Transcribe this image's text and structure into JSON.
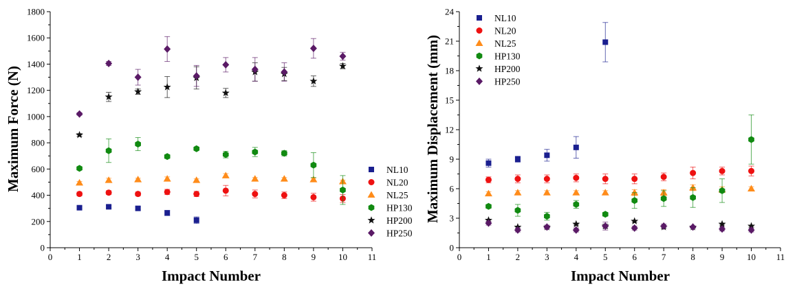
{
  "series_styles": {
    "NL10": {
      "color": "#1a1f8f",
      "marker": "square"
    },
    "NL20": {
      "color": "#ee1111",
      "marker": "circle"
    },
    "NL25": {
      "color": "#ff8c1a",
      "marker": "triangle"
    },
    "HP130": {
      "color": "#118a11",
      "marker": "hexagon"
    },
    "HP200": {
      "color": "#111111",
      "marker": "star"
    },
    "HP250": {
      "color": "#5a1a66",
      "marker": "diamond"
    }
  },
  "chart_data": [
    {
      "type": "scatter",
      "title": "",
      "xlabel": "Impact Number",
      "ylabel": "Maximum Force (N)",
      "xlim": [
        0,
        11
      ],
      "ylim": [
        0,
        1800
      ],
      "xticks": [
        0,
        1,
        2,
        3,
        4,
        5,
        6,
        7,
        8,
        9,
        10,
        11
      ],
      "yticks": [
        0,
        200,
        400,
        600,
        800,
        1000,
        1200,
        1400,
        1600,
        1800
      ],
      "grid": false,
      "legend_position": "bottom-right",
      "series": [
        {
          "name": "NL10",
          "x": [
            1,
            2,
            3,
            4,
            5
          ],
          "y": [
            305,
            312,
            300,
            265,
            210
          ],
          "err": [
            10,
            10,
            12,
            20,
            25
          ]
        },
        {
          "name": "NL20",
          "x": [
            1,
            2,
            3,
            4,
            5,
            6,
            7,
            8,
            9,
            10
          ],
          "y": [
            410,
            420,
            410,
            425,
            410,
            435,
            410,
            400,
            385,
            375
          ],
          "err": [
            15,
            15,
            15,
            20,
            20,
            40,
            30,
            25,
            30,
            30
          ]
        },
        {
          "name": "NL25",
          "x": [
            1,
            2,
            3,
            4,
            5,
            6,
            7,
            8,
            9,
            10
          ],
          "y": [
            495,
            515,
            520,
            525,
            515,
            550,
            525,
            525,
            520,
            505
          ],
          "err": [
            10,
            15,
            10,
            15,
            10,
            15,
            10,
            10,
            10,
            10
          ]
        },
        {
          "name": "HP130",
          "x": [
            1,
            2,
            3,
            4,
            5,
            6,
            7,
            8,
            9,
            10
          ],
          "y": [
            605,
            740,
            790,
            695,
            755,
            710,
            730,
            720,
            630,
            440
          ],
          "err": [
            10,
            90,
            50,
            15,
            10,
            25,
            35,
            20,
            95,
            110
          ]
        },
        {
          "name": "HP200",
          "x": [
            1,
            2,
            3,
            4,
            5,
            6,
            7,
            8,
            9,
            10
          ],
          "y": [
            860,
            1150,
            1190,
            1225,
            1295,
            1180,
            1340,
            1325,
            1270,
            1385
          ],
          "err": [
            10,
            35,
            20,
            80,
            85,
            35,
            70,
            50,
            40,
            20
          ]
        },
        {
          "name": "HP250",
          "x": [
            1,
            2,
            3,
            4,
            5,
            6,
            7,
            8,
            9,
            10
          ],
          "y": [
            1020,
            1405,
            1300,
            1515,
            1310,
            1395,
            1360,
            1340,
            1520,
            1460
          ],
          "err": [
            10,
            15,
            60,
            95,
            80,
            55,
            90,
            70,
            75,
            30
          ]
        }
      ]
    },
    {
      "type": "scatter",
      "title": "",
      "xlabel": "Impact Number",
      "ylabel": "Maximum Displacement (mm)",
      "xlim": [
        0,
        11
      ],
      "ylim": [
        0,
        24
      ],
      "xticks": [
        0,
        1,
        2,
        3,
        4,
        5,
        6,
        7,
        8,
        9,
        10,
        11
      ],
      "yticks": [
        0,
        3,
        6,
        9,
        12,
        15,
        18,
        21,
        24
      ],
      "grid": false,
      "legend_position": "top-left",
      "series": [
        {
          "name": "NL10",
          "x": [
            1,
            2,
            3,
            4,
            5
          ],
          "y": [
            8.6,
            9.0,
            9.4,
            10.2,
            20.9
          ],
          "err": [
            0.4,
            0.3,
            0.6,
            1.1,
            2.0
          ]
        },
        {
          "name": "NL20",
          "x": [
            1,
            2,
            3,
            4,
            5,
            6,
            7,
            8,
            9,
            10
          ],
          "y": [
            6.9,
            7.0,
            7.0,
            7.1,
            7.0,
            7.0,
            7.2,
            7.6,
            7.8,
            7.8
          ],
          "err": [
            0.3,
            0.4,
            0.4,
            0.4,
            0.5,
            0.5,
            0.4,
            0.6,
            0.4,
            0.5
          ]
        },
        {
          "name": "NL25",
          "x": [
            1,
            2,
            3,
            4,
            5,
            6,
            7,
            8,
            9,
            10
          ],
          "y": [
            5.5,
            5.6,
            5.6,
            5.6,
            5.6,
            5.6,
            5.6,
            6.1,
            5.9,
            6.0
          ],
          "err": [
            0.2,
            0.2,
            0.2,
            0.2,
            0.2,
            0.3,
            0.3,
            0.3,
            0.3,
            0.2
          ]
        },
        {
          "name": "HP130",
          "x": [
            1,
            2,
            3,
            4,
            5,
            6,
            7,
            8,
            9,
            10
          ],
          "y": [
            4.2,
            3.8,
            3.2,
            4.4,
            3.4,
            4.8,
            5.0,
            5.1,
            5.8,
            11.0
          ],
          "err": [
            0.2,
            0.6,
            0.4,
            0.4,
            0.2,
            0.8,
            0.8,
            1.0,
            1.2,
            2.5
          ]
        },
        {
          "name": "HP200",
          "x": [
            1,
            2,
            3,
            4,
            5,
            6,
            7,
            8,
            9,
            10
          ],
          "y": [
            2.8,
            2.1,
            2.1,
            2.4,
            2.2,
            2.7,
            2.1,
            2.1,
            2.4,
            2.2
          ],
          "err": [
            0.1,
            0.1,
            0.1,
            0.1,
            0.2,
            0.1,
            0.1,
            0.1,
            0.1,
            0.1
          ]
        },
        {
          "name": "HP250",
          "x": [
            1,
            2,
            3,
            4,
            5,
            6,
            7,
            8,
            9,
            10
          ],
          "y": [
            2.5,
            1.8,
            2.1,
            1.8,
            2.2,
            2.0,
            2.2,
            2.1,
            1.9,
            1.8
          ],
          "err": [
            0.2,
            0.2,
            0.2,
            0.2,
            0.4,
            0.2,
            0.2,
            0.1,
            0.2,
            0.2
          ]
        }
      ]
    }
  ]
}
